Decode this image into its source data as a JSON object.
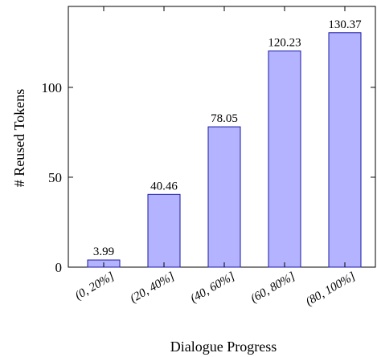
{
  "chart_data": {
    "type": "bar",
    "title": "",
    "xlabel": "Dialogue Progress",
    "ylabel": "# Reused Tokens",
    "categories": [
      "(0, 20%]",
      "(20, 40%]",
      "(40, 60%]",
      "(60, 80%]",
      "(80, 100%]"
    ],
    "series": [
      {
        "values": [
          3.99,
          40.46,
          78.05,
          120.23,
          130.37
        ],
        "labels": [
          "3.99",
          "40.46",
          "78.05",
          "120.23",
          "130.37"
        ]
      }
    ],
    "yticks": [
      0,
      50,
      100
    ],
    "ylim": [
      0,
      145
    ],
    "grid": false,
    "colors": {
      "bar_fill": "#b3b3ff",
      "bar_stroke": "#1a1aa6",
      "axis": "#000000"
    }
  }
}
